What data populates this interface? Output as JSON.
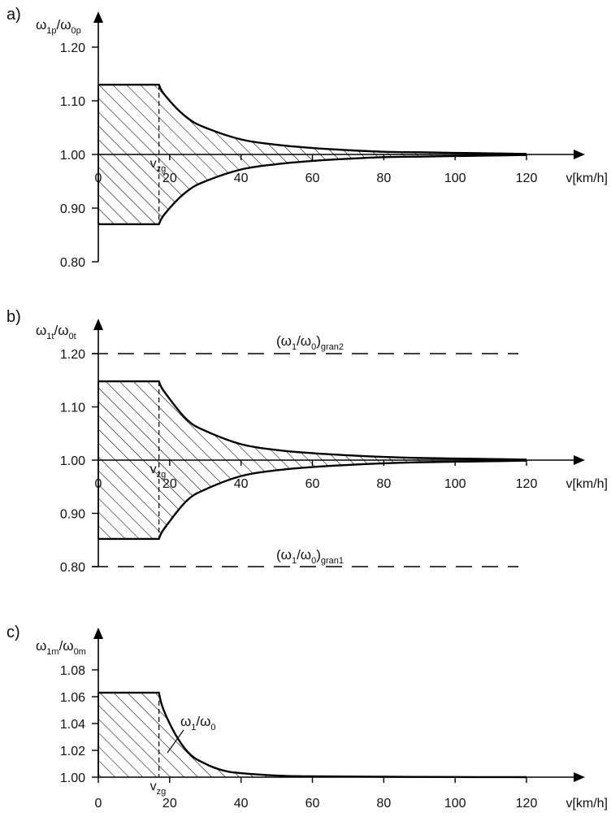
{
  "figure": {
    "vzg_label": {
      "main": "v",
      "sub": "zg"
    },
    "vzg_value": 17,
    "x_unit_label": "v[km/h]",
    "x_ticks": [
      "0",
      "20",
      "40",
      "60",
      "80",
      "100",
      "120"
    ]
  },
  "chart_data": [
    {
      "panel": "a)",
      "type": "area",
      "ylabel": {
        "num": "ω",
        "num_sub": "1p",
        "den": "/ω",
        "den_sub": "0p"
      },
      "xlabel": "v[km/h]",
      "xlim": [
        0,
        120
      ],
      "ylim": [
        0.8,
        1.2
      ],
      "y_ticks": [
        "0.80",
        "0.90",
        "1.00",
        "1.10",
        "1.20"
      ],
      "series": [
        {
          "x": [
            0,
            17,
            20,
            25,
            30,
            40,
            50,
            60,
            70,
            80,
            90,
            100,
            110,
            120
          ],
          "y": [
            1.13,
            1.13,
            1.1,
            1.068,
            1.05,
            1.028,
            1.018,
            1.012,
            1.008,
            1.005,
            1.004,
            1.003,
            1.002,
            1.001
          ]
        },
        {
          "x": [
            0,
            17,
            20,
            25,
            30,
            40,
            50,
            60,
            70,
            80,
            90,
            100,
            110,
            120
          ],
          "y": [
            0.87,
            0.87,
            0.9,
            0.932,
            0.95,
            0.972,
            0.982,
            0.988,
            0.992,
            0.995,
            0.996,
            0.997,
            0.998,
            0.999
          ]
        }
      ],
      "limits": []
    },
    {
      "panel": "b)",
      "type": "area",
      "ylabel": {
        "num": "ω",
        "num_sub": "1t",
        "den": "/ω",
        "den_sub": "0t"
      },
      "xlabel": "v[km/h]",
      "xlim": [
        0,
        120
      ],
      "ylim": [
        0.8,
        1.2
      ],
      "y_ticks": [
        "0.80",
        "0.90",
        "1.00",
        "1.10",
        "1.20"
      ],
      "series": [
        {
          "x": [
            0,
            17,
            20,
            25,
            30,
            40,
            50,
            60,
            70,
            80,
            90,
            100,
            110,
            120
          ],
          "y": [
            1.148,
            1.148,
            1.115,
            1.075,
            1.055,
            1.03,
            1.019,
            1.013,
            1.009,
            1.006,
            1.004,
            1.003,
            1.002,
            1.001
          ]
        },
        {
          "x": [
            0,
            17,
            20,
            25,
            30,
            40,
            50,
            60,
            70,
            80,
            90,
            100,
            110,
            120
          ],
          "y": [
            0.852,
            0.852,
            0.885,
            0.925,
            0.945,
            0.97,
            0.981,
            0.987,
            0.991,
            0.994,
            0.996,
            0.997,
            0.998,
            0.999
          ]
        }
      ],
      "limits": [
        {
          "value": 1.2,
          "label": {
            "main": "(ω",
            "s1": "1",
            "mid": "/ω",
            "s2": "0",
            "close": ")",
            "s3": "gran2"
          }
        },
        {
          "value": 0.8,
          "label": {
            "main": "(ω",
            "s1": "1",
            "mid": "/ω",
            "s2": "0",
            "close": ")",
            "s3": "gran1"
          }
        }
      ]
    },
    {
      "panel": "c)",
      "type": "area",
      "ylabel": {
        "num": "ω",
        "num_sub": "1m",
        "den": "/ω",
        "den_sub": "0m"
      },
      "xlabel": "v[km/h]",
      "xlim": [
        0,
        120
      ],
      "ylim": [
        1.0,
        1.08
      ],
      "y_ticks": [
        "1.00",
        "1.02",
        "1.04",
        "1.06",
        "1.08"
      ],
      "series": [
        {
          "x": [
            0,
            17,
            20,
            25,
            30,
            35,
            40,
            50,
            60,
            80,
            100,
            120
          ],
          "y": [
            1.063,
            1.063,
            1.04,
            1.019,
            1.01,
            1.005,
            1.003,
            1.0012,
            1.0006,
            1.0003,
            1.0001,
            1.0
          ]
        }
      ],
      "curve_label": {
        "main": "ω",
        "s1": "1",
        "mid": "/ω",
        "s2": "0"
      },
      "limits": []
    }
  ]
}
